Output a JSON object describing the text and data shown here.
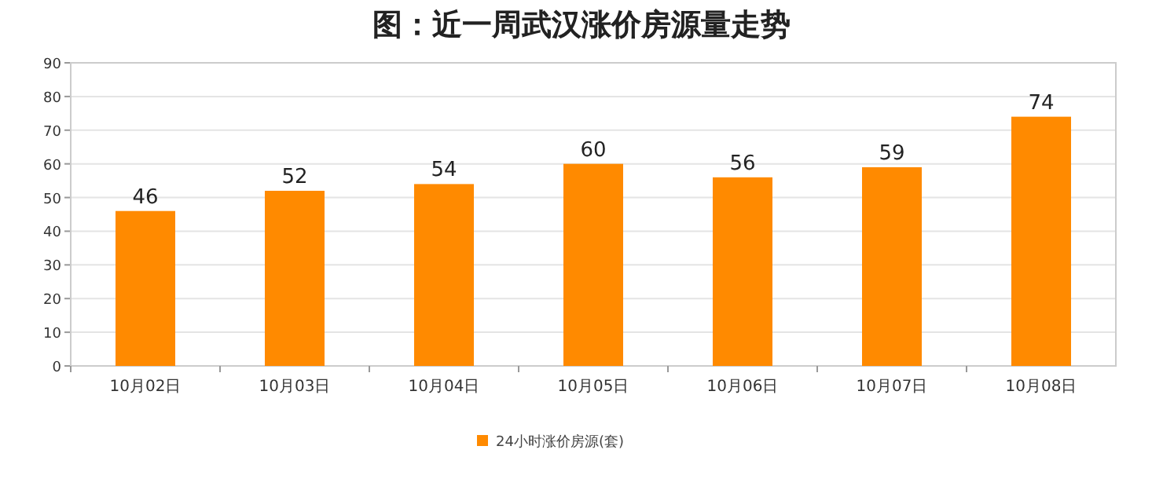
{
  "chart_data": {
    "type": "bar",
    "title": "图：近一周武汉涨价房源量走势",
    "categories": [
      "10月02日",
      "10月03日",
      "10月04日",
      "10月05日",
      "10月06日",
      "10月07日",
      "10月08日"
    ],
    "series": [
      {
        "name": "24小时涨价房源(套)",
        "color": "#ff8a00",
        "values": [
          46,
          52,
          54,
          60,
          56,
          59,
          74
        ]
      }
    ],
    "ylim": [
      0,
      90
    ],
    "yticks": [
      0,
      10,
      20,
      30,
      40,
      50,
      60,
      70,
      80,
      90
    ],
    "grid": "y",
    "data_labels": true,
    "legend": "bottom"
  }
}
